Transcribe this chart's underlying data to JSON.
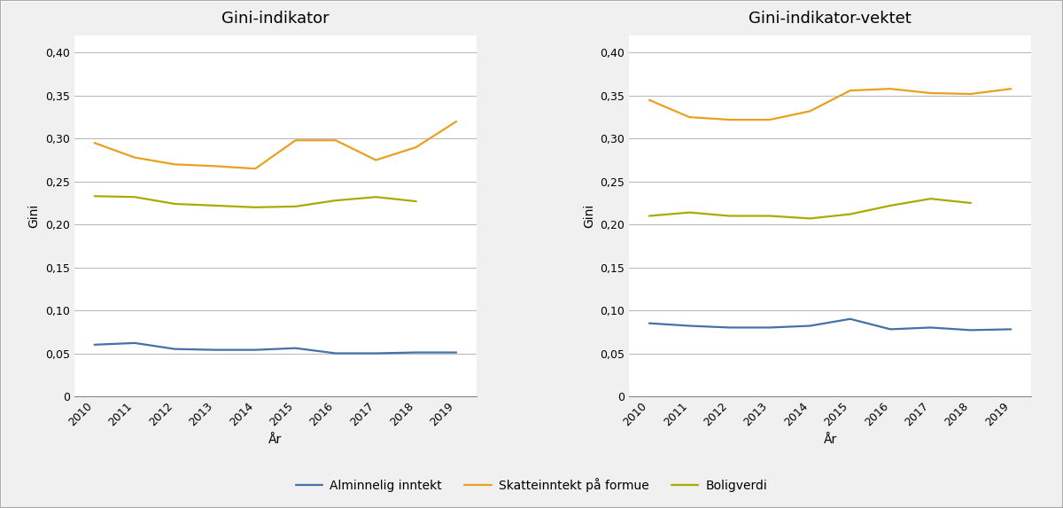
{
  "years": [
    2010,
    2011,
    2012,
    2013,
    2014,
    2015,
    2016,
    2017,
    2018,
    2019
  ],
  "left": {
    "title": "Gini-indikator",
    "alminnelig": [
      0.06,
      0.062,
      0.055,
      0.054,
      0.054,
      0.056,
      0.05,
      0.05,
      0.051,
      0.051
    ],
    "skatt": [
      0.295,
      0.278,
      0.27,
      0.268,
      0.265,
      0.298,
      0.298,
      0.275,
      0.29,
      0.32
    ],
    "bolig": [
      0.233,
      0.232,
      0.224,
      0.222,
      0.22,
      0.221,
      0.228,
      0.232,
      0.227,
      null
    ]
  },
  "right": {
    "title": "Gini-indikator-vektet",
    "alminnelig": [
      0.085,
      0.082,
      0.08,
      0.08,
      0.082,
      0.09,
      0.078,
      0.08,
      0.077,
      0.078
    ],
    "skatt": [
      0.345,
      0.325,
      0.322,
      0.322,
      0.332,
      0.356,
      0.358,
      0.353,
      0.352,
      0.358
    ],
    "bolig": [
      0.21,
      0.214,
      0.21,
      0.21,
      0.207,
      0.212,
      0.222,
      0.23,
      0.225,
      null
    ]
  },
  "colors": {
    "alminnelig": "#4472A8",
    "skatt": "#E8A020",
    "bolig": "#AAAA00"
  },
  "legend": {
    "alminnelig": "Alminnelig inntekt",
    "skatt": "Skatteinntekt på formue",
    "bolig": "Boligverdi"
  },
  "ylabel": "Gini",
  "xlabel": "År",
  "ylim": [
    0,
    0.42
  ],
  "yticks": [
    0,
    0.05,
    0.1,
    0.15,
    0.2,
    0.25,
    0.3,
    0.35,
    0.4
  ],
  "fig_background": "#f0f0f0",
  "plot_background": "#ffffff",
  "grid_color": "#bbbbbb",
  "spine_color": "#888888",
  "title_fontsize": 13,
  "label_fontsize": 10,
  "tick_fontsize": 9,
  "legend_fontsize": 10,
  "line_width": 1.6
}
